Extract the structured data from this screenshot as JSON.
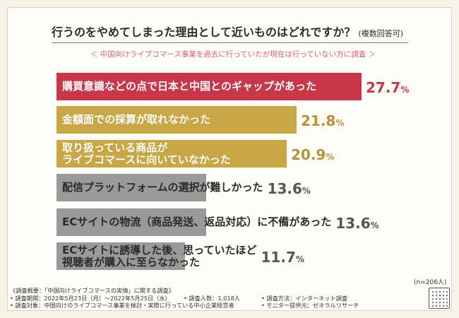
{
  "header": {
    "title": "行うのをやめてしまった理由として近いものはどれですか？",
    "title_note": "(複数回答可)",
    "subtitle": "＜ 中国向けライブコマース事業を過去に行っていたが現在は行っていない方に調査 ＞"
  },
  "colors": {
    "highlight": "#c8374a",
    "gold": "#c8a744",
    "gray": "#9a9a9a",
    "highlight_text": "#c8374a",
    "gold_text": "#b8913a",
    "gray_text": "#555555"
  },
  "chart_data": {
    "type": "bar",
    "orientation": "horizontal",
    "title": "行うのをやめてしまった理由として近いものはどれですか？",
    "unit": "%",
    "sample_size": "(n=206人)",
    "categories": [
      [
        "購買意識などの点で日本と中国とのギャップがあった"
      ],
      [
        "金額面での採算が取れなかった"
      ],
      [
        "取り扱っている商品が",
        "ライブコマースに向いていなかった"
      ],
      [
        "配信プラットフォームの選択が難しかった"
      ],
      [
        "ECサイトの物流（商品発送、返品対応）に不備があった"
      ],
      [
        "ECサイトに誘導した後、思っていたほど",
        "視聴者が購入に至らなかった"
      ]
    ],
    "values": [
      27.7,
      21.8,
      20.9,
      13.6,
      13.6,
      11.7
    ],
    "value_labels": [
      "27.7",
      "21.8",
      "20.9",
      "13.6",
      "13.6",
      "11.7"
    ],
    "color_groups": [
      "highlight",
      "gold",
      "gold",
      "gray",
      "gray",
      "gray"
    ],
    "xlim": [
      0,
      27.7
    ]
  },
  "footer": {
    "overview": "《調査概要：「中国向けライブコマースの実情」に関する調査》",
    "period": "• 調査期間：2022年5月23日（月）～2022年5月25日（水）",
    "respondents": "• 調査人数：1,018人",
    "method": "• 調査方法：インターネット調査",
    "target": "• 調査対象：中国向けのライブコマース事業を検討・実際に行っている中小企業経営者",
    "provider": "• モニター提供元：ゼネラルリサーチ"
  }
}
